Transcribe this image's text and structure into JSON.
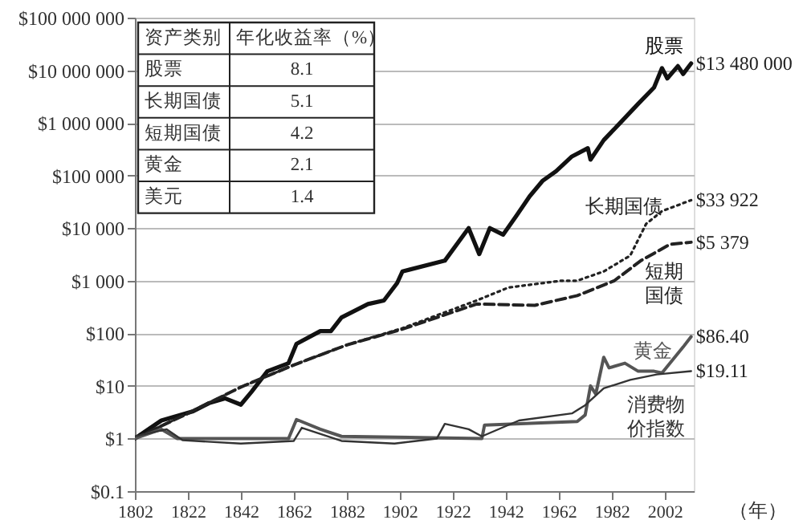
{
  "chart_data": {
    "type": "line",
    "xlabel": "（年）",
    "log": "y",
    "grid": "y",
    "xlim": [
      1802,
      2013
    ],
    "xticks": [
      1802,
      1822,
      1842,
      1862,
      1882,
      1902,
      1922,
      1942,
      1962,
      1982,
      2002
    ],
    "ylim": [
      0.1,
      100000000
    ],
    "yticks": [
      {
        "value": 0.1,
        "label": "$0.1"
      },
      {
        "value": 1,
        "label": "$1"
      },
      {
        "value": 10,
        "label": "$10"
      },
      {
        "value": 100,
        "label": "$100"
      },
      {
        "value": 1000,
        "label": "$1 000"
      },
      {
        "value": 10000,
        "label": "$10 000"
      },
      {
        "value": 100000,
        "label": "$100 000"
      },
      {
        "value": 1000000,
        "label": "$1 000 000"
      },
      {
        "value": 10000000,
        "label": "$10 000 000"
      },
      {
        "value": 100000000,
        "label": "$100 000 000"
      }
    ],
    "annotations": [
      "资产类别",
      "年化收益率（%）",
      "股票",
      "8.1",
      "长期国债",
      "5.1",
      "短期国债",
      "4.2",
      "黄金",
      "2.1",
      "美元",
      "1.4"
    ],
    "series": [
      {
        "name": "股票",
        "color": "#111111",
        "line_style": "solid",
        "x": [
          1802,
          1812,
          1824,
          1830,
          1836,
          1842,
          1846,
          1852,
          1860,
          1863,
          1872,
          1876,
          1880,
          1890,
          1896,
          1901,
          1903,
          1919,
          1928,
          1932,
          1936,
          1941,
          1946,
          1951,
          1956,
          1961,
          1967,
          1973,
          1974,
          1979,
          1986,
          1992,
          1998,
          2001,
          2003,
          2007,
          2009,
          2012
        ],
        "values": [
          1,
          2.2,
          3.3,
          4.7,
          5.8,
          4.4,
          7.7,
          19,
          27,
          63,
          110,
          110,
          200,
          360,
          420,
          900,
          1500,
          2400,
          10000,
          3200,
          10000,
          7500,
          17000,
          40000,
          80000,
          120000,
          230000,
          330000,
          200000,
          470000,
          1100000,
          2300000,
          4700000,
          11000000,
          7000000,
          12000000,
          8500000,
          13480000
        ],
        "value_labels": [
          null,
          null,
          null,
          null,
          null,
          null,
          null,
          null,
          null,
          null,
          null,
          null,
          null,
          null,
          null,
          null,
          null,
          null,
          null,
          null,
          null,
          null,
          null,
          null,
          null,
          null,
          null,
          null,
          null,
          null,
          null,
          null,
          null,
          null,
          null,
          null,
          null,
          "$13 480 000"
        ]
      },
      {
        "name": "长期国债",
        "color": "#222222",
        "line_style": "dotted",
        "x": [
          1802,
          1822,
          1842,
          1862,
          1882,
          1903,
          1931,
          1943,
          1963,
          1969,
          1979,
          1989,
          1995,
          2001,
          2012
        ],
        "values": [
          1,
          3,
          9.5,
          25,
          60,
          125,
          420,
          740,
          1000,
          1000,
          1500,
          3000,
          12000,
          21000,
          33922
        ],
        "value_labels": [
          null,
          null,
          null,
          null,
          null,
          null,
          null,
          null,
          null,
          null,
          null,
          null,
          null,
          null,
          "$33 922"
        ]
      },
      {
        "name": "短期国债",
        "color": "#222222",
        "line_style": "dashed",
        "x": [
          1802,
          1822,
          1842,
          1862,
          1882,
          1903,
          1931,
          1953,
          1969,
          1983,
          1993,
          2004,
          2012
        ],
        "values": [
          1,
          3,
          9.5,
          25,
          60,
          120,
          360,
          340,
          520,
          1000,
          2400,
          4900,
          5379
        ],
        "value_labels": [
          null,
          null,
          null,
          null,
          null,
          null,
          null,
          null,
          null,
          null,
          null,
          null,
          "$5 379"
        ]
      },
      {
        "name": "黄金",
        "color": "#555555",
        "line_style": "solid",
        "x": [
          1802,
          1812,
          1818,
          1860,
          1863,
          1872,
          1880,
          1933,
          1934,
          1969,
          1972,
          1974,
          1976,
          1979,
          1981,
          1987,
          1992,
          1998,
          2001,
          2009,
          2012
        ],
        "values": [
          1,
          1.5,
          1,
          1,
          2.3,
          1.5,
          1.1,
          1,
          1.8,
          2.1,
          2.8,
          10,
          7,
          35,
          22,
          27,
          19,
          19,
          17.6,
          55,
          86.4
        ],
        "value_labels": [
          null,
          null,
          null,
          null,
          null,
          null,
          null,
          null,
          null,
          null,
          null,
          null,
          null,
          null,
          null,
          null,
          null,
          null,
          null,
          null,
          "$86.40"
        ]
      },
      {
        "name": "消费物价指数",
        "color": "#333333",
        "line_style": "solid",
        "x": [
          1802,
          1814,
          1820,
          1842,
          1862,
          1865,
          1880,
          1900,
          1916,
          1919,
          1928,
          1933,
          1947,
          1967,
          1972,
          1979,
          1989,
          1999,
          2012
        ],
        "values": [
          1.1,
          1.5,
          0.93,
          0.8,
          0.9,
          1.6,
          0.9,
          0.8,
          1.0,
          1.9,
          1.5,
          1.1,
          2.2,
          3,
          4.3,
          9,
          13,
          16.5,
          19.11
        ],
        "value_labels": [
          null,
          null,
          null,
          null,
          null,
          null,
          null,
          null,
          null,
          null,
          null,
          null,
          null,
          null,
          null,
          null,
          null,
          null,
          "$19.11"
        ]
      }
    ]
  }
}
